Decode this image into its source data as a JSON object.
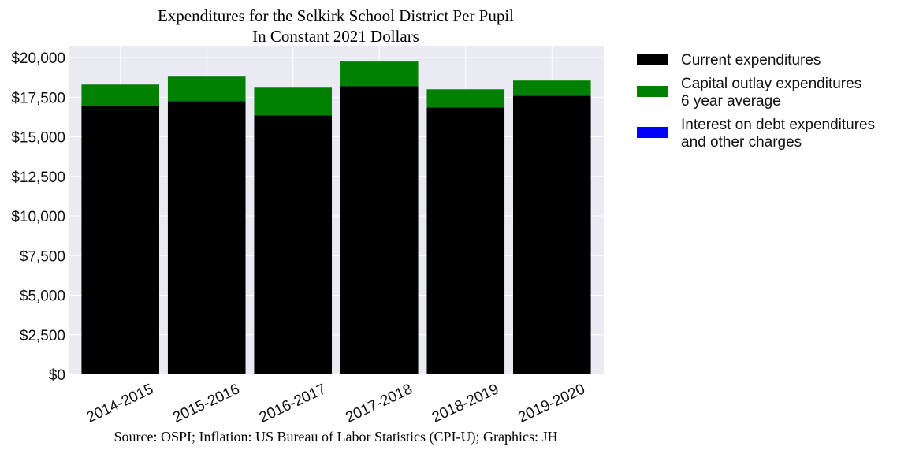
{
  "chart_data": {
    "type": "bar",
    "stacked": true,
    "title": "Expenditures for the Selkirk School District Per Pupil",
    "subtitle": "In Constant 2021 Dollars",
    "source": "Source: OSPI; Inflation: US Bureau of Labor Statistics (CPI-U); Graphics: JH",
    "categories": [
      "2014-2015",
      "2015-2016",
      "2016-2017",
      "2017-2018",
      "2018-2019",
      "2019-2020"
    ],
    "series": [
      {
        "name": "Current expenditures",
        "color": "#000000",
        "values": [
          16950,
          17250,
          16350,
          18200,
          16850,
          17600
        ]
      },
      {
        "name": "Capital outlay expenditures\n6 year average",
        "name_lines": [
          "Capital outlay expenditures",
          "6 year average"
        ],
        "color": "#008000",
        "values": [
          1350,
          1550,
          1750,
          1550,
          1150,
          950
        ]
      },
      {
        "name": "Interest on debt expenditures\nand other charges",
        "name_lines": [
          "Interest on debt expenditures",
          "and other charges"
        ],
        "color": "#0000ff",
        "values": [
          0,
          0,
          0,
          0,
          0,
          0
        ]
      }
    ],
    "ylim": [
      0,
      20750
    ],
    "yticks": [
      0,
      2500,
      5000,
      7500,
      10000,
      12500,
      15000,
      17500,
      20000
    ],
    "ytick_labels": [
      "$0",
      "$2,500",
      "$5,000",
      "$7,500",
      "$10,000",
      "$12,500",
      "$15,000",
      "$17,500",
      "$20,000"
    ],
    "xlabel": "",
    "ylabel": "",
    "grid": true,
    "legend_position": "right"
  }
}
